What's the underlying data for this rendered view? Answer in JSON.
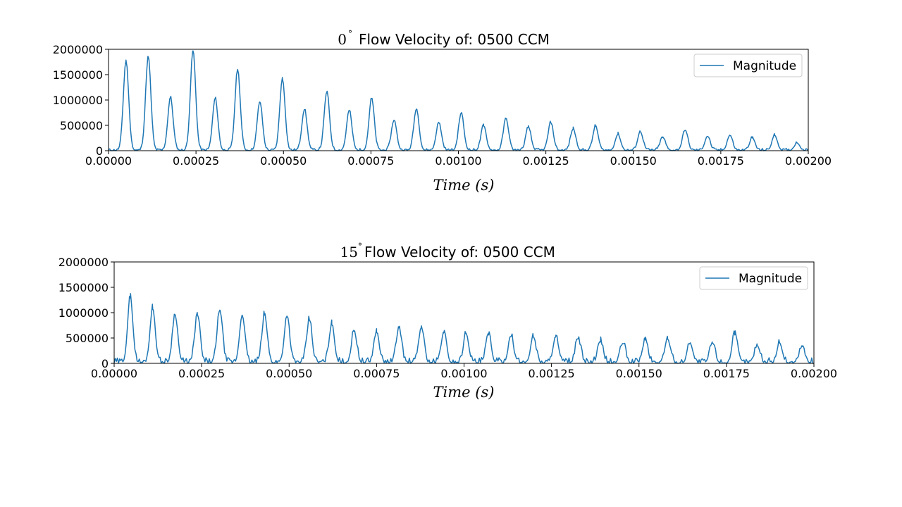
{
  "chart_data": [
    {
      "type": "line",
      "title_prefix": "0",
      "title_degree": "°",
      "title": "Flow Velocity of: 0500 CCM",
      "xlabel": "Time (s)",
      "ylabel": "",
      "xlim": [
        0,
        0.002
      ],
      "ylim": [
        0,
        2000000
      ],
      "xticks": [
        0,
        0.00025,
        0.0005,
        0.00075,
        0.001,
        0.00125,
        0.0015,
        0.00175,
        0.002
      ],
      "xtick_labels": [
        "0.00000",
        "0.00025",
        "0.00050",
        "0.00075",
        "0.00100",
        "0.00125",
        "0.00150",
        "0.00175",
        "0.00200"
      ],
      "yticks": [
        0,
        500000,
        1000000,
        1500000,
        2000000
      ],
      "ytick_labels": [
        "0",
        "500000",
        "1000000",
        "1500000",
        "2000000"
      ],
      "legend": "top-right",
      "grid": false,
      "series": [
        {
          "name": "Magnitude",
          "color": "#1f77b4",
          "peaks": {
            "x": [
              5e-05,
              0.0001135,
              0.000177,
              0.0002415,
              0.000305,
              0.000369,
              0.0004325,
              0.000497,
              0.00056,
              0.000624,
              0.000688,
              0.000752,
              0.000816,
              0.00088,
              0.000944,
              0.001008,
              0.001072,
              0.001136,
              0.0012,
              0.001264,
              0.001328,
              0.001392,
              0.001456,
              0.00152,
              0.001584,
              0.001648,
              0.001712,
              0.001776,
              0.00184,
              0.001904,
              0.001968
            ],
            "y": [
              1780000,
              1850000,
              1050000,
              1970000,
              1030000,
              1600000,
              960000,
              1420000,
              810000,
              1160000,
              790000,
              1030000,
              600000,
              820000,
              550000,
              740000,
              490000,
              630000,
              460000,
              550000,
              430000,
              480000,
              320000,
              370000,
              260000,
              400000,
              280000,
              300000,
              250000,
              300000,
              150000
            ]
          }
        }
      ]
    },
    {
      "type": "line",
      "title_prefix": "15",
      "title_degree": "°",
      "title": "Flow Velocity of: 0500 CCM",
      "xlabel": "Time (s)",
      "ylabel": "",
      "xlim": [
        0,
        0.002
      ],
      "ylim": [
        0,
        2000000
      ],
      "xticks": [
        0,
        0.00025,
        0.0005,
        0.00075,
        0.001,
        0.00125,
        0.0015,
        0.00175,
        0.002
      ],
      "xtick_labels": [
        "0.00000",
        "0.00025",
        "0.00050",
        "0.00075",
        "0.00100",
        "0.00125",
        "0.00150",
        "0.00175",
        "0.00200"
      ],
      "yticks": [
        0,
        500000,
        1000000,
        1500000,
        2000000
      ],
      "ytick_labels": [
        "0",
        "500000",
        "1000000",
        "1500000",
        "2000000"
      ],
      "legend": "top-right",
      "grid": false,
      "series": [
        {
          "name": "Magnitude",
          "color": "#1f77b4",
          "peaks": {
            "x": [
              4.6e-05,
              0.00011,
              0.000174,
              0.000238,
              0.000302,
              0.000366,
              0.00043,
              0.000494,
              0.000558,
              0.000622,
              0.000686,
              0.00075,
              0.000814,
              0.000878,
              0.000942,
              0.001006,
              0.00107,
              0.001134,
              0.001198,
              0.001262,
              0.001326,
              0.00139,
              0.001454,
              0.001518,
              0.001582,
              0.001646,
              0.00171,
              0.001774,
              0.001838,
              0.001902,
              0.001966
            ],
            "y": [
              1290000,
              1080000,
              960000,
              960000,
              1050000,
              950000,
              950000,
              930000,
              850000,
              760000,
              630000,
              610000,
              700000,
              710000,
              600000,
              580000,
              560000,
              530000,
              520000,
              520000,
              480000,
              420000,
              390000,
              460000,
              480000,
              400000,
              400000,
              560000,
              350000,
              400000,
              330000
            ]
          }
        }
      ]
    }
  ]
}
